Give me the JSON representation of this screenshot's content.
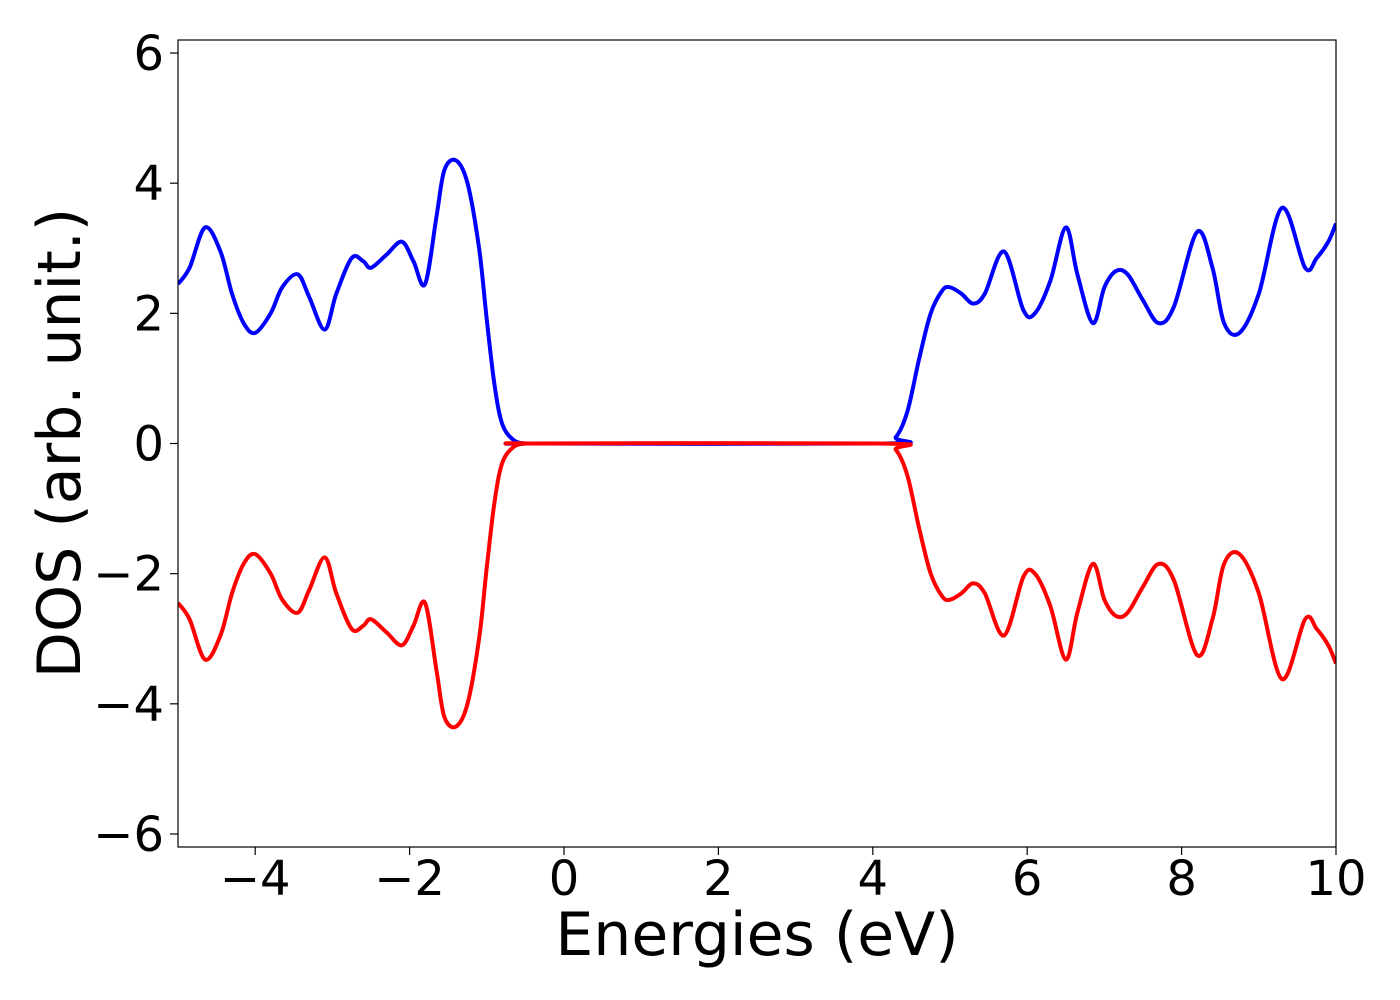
{
  "chart_data": {
    "type": "line",
    "xlabel": "Energies (eV)",
    "ylabel": "DOS (arb. unit.)",
    "xlim": [
      -5,
      10
    ],
    "ylim": [
      -6.2,
      6.2
    ],
    "xticks": [
      -4,
      -2,
      0,
      2,
      4,
      6,
      8,
      10
    ],
    "yticks": [
      -6,
      -4,
      -2,
      0,
      2,
      4,
      6
    ],
    "xtick_labels": [
      "−4",
      "−2",
      "0",
      "2",
      "4",
      "6",
      "8",
      "10"
    ],
    "ytick_labels": [
      "−6",
      "−4",
      "−2",
      "0",
      "2",
      "4",
      "6"
    ],
    "grid": false,
    "colors": {
      "up": "#0000ff",
      "down": "#ff0000"
    },
    "series": [
      {
        "color": "#0000ff",
        "x": [
          -5.0,
          -4.85,
          -4.65,
          -4.45,
          -4.3,
          -4.15,
          -4.0,
          -3.8,
          -3.65,
          -3.45,
          -3.3,
          -3.1,
          -2.95,
          -2.75,
          -2.6,
          -2.5,
          -2.3,
          -2.1,
          -1.95,
          -1.8,
          -1.65,
          -1.55,
          -1.4,
          -1.25,
          -1.1,
          -1.0,
          -0.9,
          -0.8,
          -0.65,
          -0.5,
          -0.4,
          4.1,
          4.3,
          4.45,
          4.6,
          4.75,
          4.9,
          5.0,
          5.15,
          5.3,
          5.45,
          5.7,
          5.95,
          6.1,
          6.3,
          6.5,
          6.65,
          6.85,
          7.0,
          7.15,
          7.3,
          7.5,
          7.7,
          7.9,
          8.2,
          8.4,
          8.55,
          8.75,
          9.0,
          9.3,
          9.6,
          9.75,
          9.9,
          10.0
        ],
        "y": [
          2.45,
          2.7,
          3.32,
          2.95,
          2.3,
          1.85,
          1.7,
          2.0,
          2.4,
          2.6,
          2.25,
          1.75,
          2.3,
          2.85,
          2.8,
          2.7,
          2.9,
          3.1,
          2.8,
          2.45,
          3.5,
          4.2,
          4.35,
          4.0,
          3.0,
          1.9,
          0.9,
          0.3,
          0.05,
          0.0,
          0.0,
          0.0,
          0.1,
          0.5,
          1.3,
          2.0,
          2.35,
          2.4,
          2.3,
          2.15,
          2.3,
          2.95,
          2.05,
          2.0,
          2.5,
          3.32,
          2.6,
          1.85,
          2.4,
          2.65,
          2.6,
          2.2,
          1.85,
          2.1,
          3.25,
          2.7,
          1.85,
          1.7,
          2.3,
          3.62,
          2.7,
          2.85,
          3.1,
          3.38
        ]
      },
      {
        "color": "#ff0000",
        "x": [
          -5.0,
          -4.85,
          -4.65,
          -4.45,
          -4.3,
          -4.15,
          -4.0,
          -3.8,
          -3.65,
          -3.45,
          -3.3,
          -3.1,
          -2.95,
          -2.75,
          -2.6,
          -2.5,
          -2.3,
          -2.1,
          -1.95,
          -1.8,
          -1.65,
          -1.55,
          -1.4,
          -1.25,
          -1.1,
          -1.0,
          -0.9,
          -0.8,
          -0.65,
          -0.5,
          -0.4,
          4.1,
          4.3,
          4.45,
          4.6,
          4.75,
          4.9,
          5.0,
          5.15,
          5.3,
          5.45,
          5.7,
          5.95,
          6.1,
          6.3,
          6.5,
          6.65,
          6.85,
          7.0,
          7.15,
          7.3,
          7.5,
          7.7,
          7.9,
          8.2,
          8.4,
          8.55,
          8.75,
          9.0,
          9.3,
          9.6,
          9.75,
          9.9,
          10.0
        ],
        "y": [
          -2.45,
          -2.7,
          -3.32,
          -2.95,
          -2.3,
          -1.85,
          -1.7,
          -2.0,
          -2.4,
          -2.6,
          -2.25,
          -1.75,
          -2.3,
          -2.85,
          -2.8,
          -2.7,
          -2.9,
          -3.1,
          -2.8,
          -2.45,
          -3.5,
          -4.2,
          -4.35,
          -4.0,
          -3.0,
          -1.9,
          -0.9,
          -0.3,
          -0.05,
          0.0,
          0.0,
          0.0,
          -0.1,
          -0.5,
          -1.3,
          -2.0,
          -2.35,
          -2.4,
          -2.3,
          -2.15,
          -2.3,
          -2.95,
          -2.05,
          -2.0,
          -2.5,
          -3.32,
          -2.6,
          -1.85,
          -2.4,
          -2.65,
          -2.6,
          -2.2,
          -1.85,
          -2.1,
          -3.25,
          -2.7,
          -1.85,
          -1.7,
          -2.3,
          -3.62,
          -2.7,
          -2.85,
          -3.1,
          -3.38
        ]
      }
    ]
  }
}
